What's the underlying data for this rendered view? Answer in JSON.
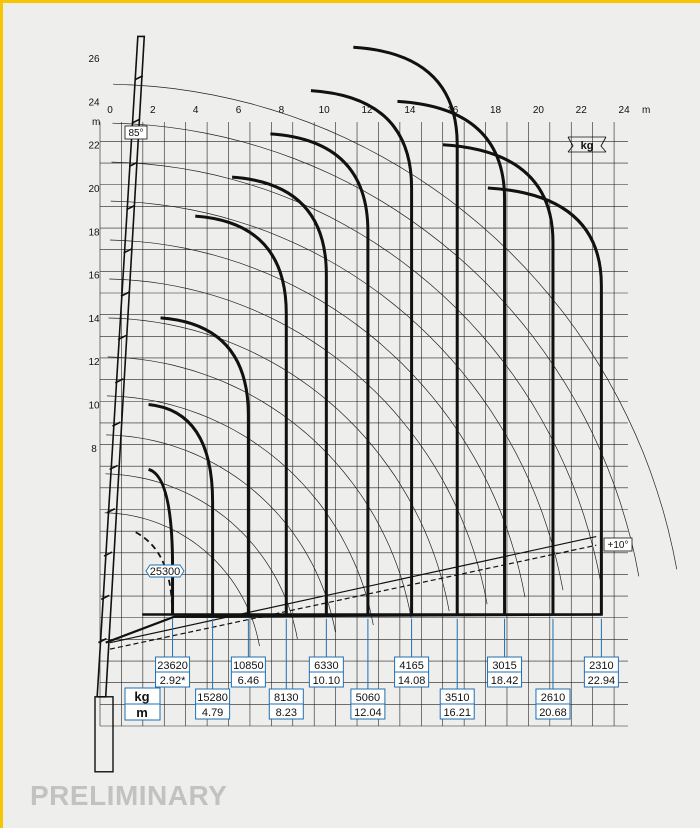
{
  "units": {
    "x_axis": "m",
    "y_axis": "m",
    "load": "kg",
    "legend_top": "kg",
    "legend_bottom": "m"
  },
  "boom_angles": {
    "max": "85°",
    "min": "+10°"
  },
  "x_ticks": [
    "0",
    "2",
    "4",
    "6",
    "8",
    "10",
    "12",
    "14",
    "16",
    "18",
    "20",
    "22",
    "24"
  ],
  "y_ticks": [
    "8",
    "10",
    "12",
    "14",
    "16",
    "18",
    "20",
    "22",
    "24",
    "26"
  ],
  "label_tip": "25300",
  "load_points": [
    {
      "reach": 2.92,
      "load": "23620",
      "reach_label": "2.92*"
    },
    {
      "reach": 4.79,
      "load": "15280",
      "reach_label": "4.79"
    },
    {
      "reach": 6.46,
      "load": "10850",
      "reach_label": "6.46"
    },
    {
      "reach": 8.23,
      "load": "8130",
      "reach_label": "8.23"
    },
    {
      "reach": 10.1,
      "load": "6330",
      "reach_label": "10.10"
    },
    {
      "reach": 12.04,
      "load": "5060",
      "reach_label": "12.04"
    },
    {
      "reach": 14.08,
      "load": "4165",
      "reach_label": "14.08"
    },
    {
      "reach": 16.21,
      "load": "3510",
      "reach_label": "16.21"
    },
    {
      "reach": 18.42,
      "load": "3015",
      "reach_label": "18.42"
    },
    {
      "reach": 20.68,
      "load": "2610",
      "reach_label": "20.68"
    },
    {
      "reach": 22.94,
      "load": "2310",
      "reach_label": "22.94"
    }
  ],
  "envelope_tops": [
    7.0,
    10.0,
    14.0,
    18.7,
    20.5,
    22.5,
    24.5,
    26.5,
    24.0,
    22.0,
    20.0
  ],
  "footer_text": "PRELIMINARY",
  "colors": {
    "accent": "#f6c600",
    "line": "#111111",
    "label_blue": "#1f6fb5",
    "background": "#eeeeec",
    "footer": "#c2c2c2"
  }
}
